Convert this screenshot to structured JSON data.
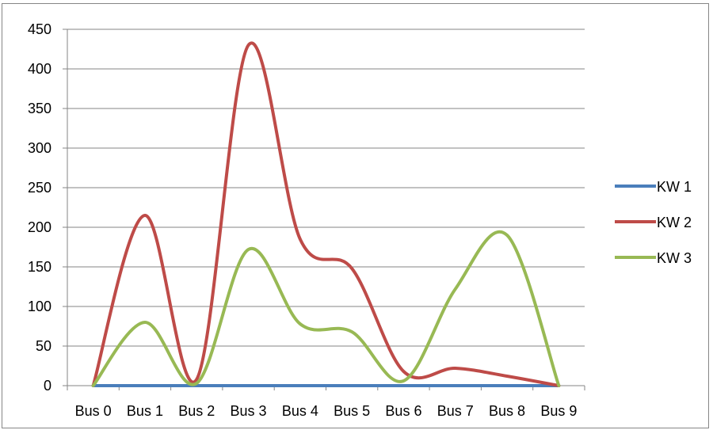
{
  "chart_data": {
    "type": "line",
    "smooth": true,
    "categories": [
      "Bus 0",
      "Bus 1",
      "Bus 2",
      "Bus 3",
      "Bus 4",
      "Bus 5",
      "Bus 6",
      "Bus 7",
      "Bus 8",
      "Bus 9"
    ],
    "ylim": [
      0,
      450
    ],
    "yticks": [
      0,
      50,
      100,
      150,
      200,
      250,
      300,
      350,
      400,
      450
    ],
    "grid": true,
    "legend_position": "right",
    "series": [
      {
        "name": "KW 1",
        "color": "#4a7ebb",
        "values": [
          0,
          0,
          0,
          0,
          0,
          0,
          0,
          0,
          0,
          0
        ]
      },
      {
        "name": "KW 2",
        "color": "#be4b48",
        "values": [
          0,
          215,
          8,
          430,
          185,
          148,
          18,
          22,
          12,
          0
        ]
      },
      {
        "name": "KW 3",
        "color": "#98b954",
        "values": [
          0,
          80,
          3,
          172,
          78,
          68,
          6,
          122,
          190,
          0
        ]
      }
    ]
  }
}
